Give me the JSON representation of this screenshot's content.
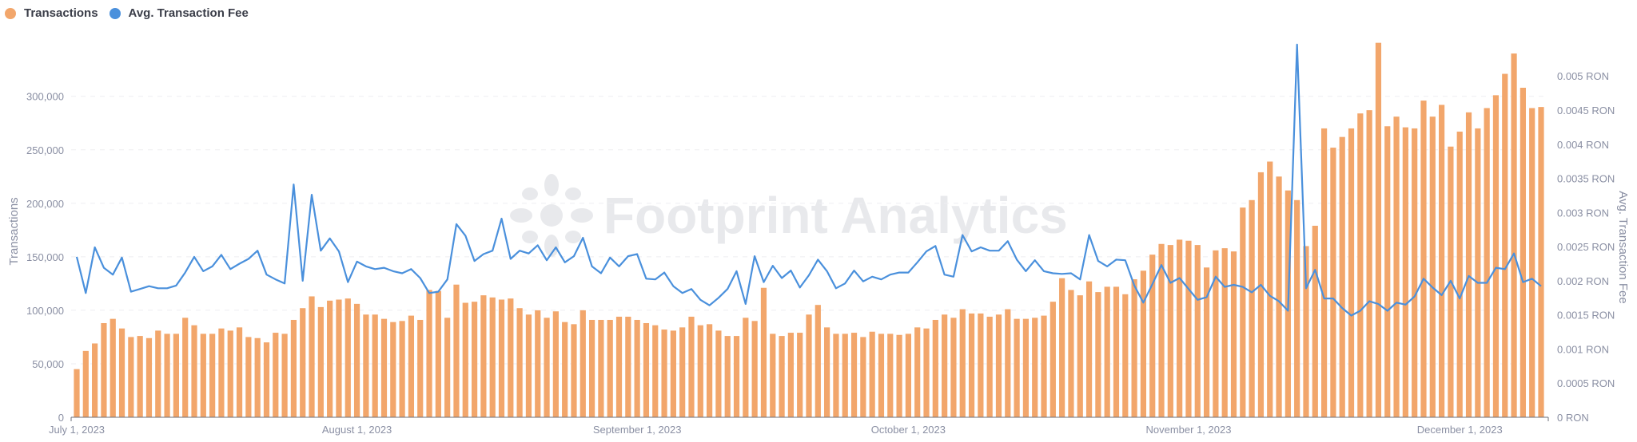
{
  "chart_data": {
    "type": "bar+line",
    "legend_position": "top-left",
    "grid": true,
    "watermark": "Footprint Analytics",
    "colors": {
      "transactions": "#F2A66B",
      "fee": "#4A90DC",
      "tick": "#8A8FA3",
      "grid": "#EEEEF1"
    },
    "xlabel": "",
    "ylabel_left": "Transactions",
    "ylabel_right": "Avg. Transaction Fee",
    "ylim_left": [
      0,
      349000
    ],
    "ylim_right": [
      0,
      0.00547
    ],
    "y_ticks_left": [
      {
        "v": 0,
        "label": "0"
      },
      {
        "v": 50000,
        "label": "50,000"
      },
      {
        "v": 100000,
        "label": "100,000"
      },
      {
        "v": 150000,
        "label": "150,000"
      },
      {
        "v": 200000,
        "label": "200,000"
      },
      {
        "v": 250000,
        "label": "250,000"
      },
      {
        "v": 300000,
        "label": "300,000"
      }
    ],
    "y_ticks_right": [
      {
        "v": 0,
        "label": "0 RON"
      },
      {
        "v": 0.0005,
        "label": "0.0005 RON"
      },
      {
        "v": 0.001,
        "label": "0.001 RON"
      },
      {
        "v": 0.0015,
        "label": "0.0015 RON"
      },
      {
        "v": 0.002,
        "label": "0.002 RON"
      },
      {
        "v": 0.0025,
        "label": "0.0025 RON"
      },
      {
        "v": 0.003,
        "label": "0.003 RON"
      },
      {
        "v": 0.0035,
        "label": "0.0035 RON"
      },
      {
        "v": 0.004,
        "label": "0.004 RON"
      },
      {
        "v": 0.0045,
        "label": "0.0045 RON"
      },
      {
        "v": 0.005,
        "label": "0.005 RON"
      }
    ],
    "x_ticks": [
      {
        "date": "2023-07-01",
        "label": "July 1, 2023"
      },
      {
        "date": "2023-08-01",
        "label": "August 1, 2023"
      },
      {
        "date": "2023-09-01",
        "label": "September 1, 2023"
      },
      {
        "date": "2023-10-01",
        "label": "October 1, 2023"
      },
      {
        "date": "2023-11-01",
        "label": "November 1, 2023"
      },
      {
        "date": "2023-12-01",
        "label": "December 1, 2023"
      }
    ],
    "x": [
      "2023-07-01",
      "2023-07-02",
      "2023-07-03",
      "2023-07-04",
      "2023-07-05",
      "2023-07-06",
      "2023-07-07",
      "2023-07-08",
      "2023-07-09",
      "2023-07-10",
      "2023-07-11",
      "2023-07-12",
      "2023-07-13",
      "2023-07-14",
      "2023-07-15",
      "2023-07-16",
      "2023-07-17",
      "2023-07-18",
      "2023-07-19",
      "2023-07-20",
      "2023-07-21",
      "2023-07-22",
      "2023-07-23",
      "2023-07-24",
      "2023-07-25",
      "2023-07-26",
      "2023-07-27",
      "2023-07-28",
      "2023-07-29",
      "2023-07-30",
      "2023-07-31",
      "2023-08-01",
      "2023-08-02",
      "2023-08-03",
      "2023-08-04",
      "2023-08-05",
      "2023-08-06",
      "2023-08-07",
      "2023-08-08",
      "2023-08-09",
      "2023-08-10",
      "2023-08-11",
      "2023-08-12",
      "2023-08-13",
      "2023-08-14",
      "2023-08-15",
      "2023-08-16",
      "2023-08-17",
      "2023-08-18",
      "2023-08-19",
      "2023-08-20",
      "2023-08-21",
      "2023-08-22",
      "2023-08-23",
      "2023-08-24",
      "2023-08-25",
      "2023-08-26",
      "2023-08-27",
      "2023-08-28",
      "2023-08-29",
      "2023-08-30",
      "2023-08-31",
      "2023-09-01",
      "2023-09-02",
      "2023-09-03",
      "2023-09-04",
      "2023-09-05",
      "2023-09-06",
      "2023-09-07",
      "2023-09-08",
      "2023-09-09",
      "2023-09-10",
      "2023-09-11",
      "2023-09-12",
      "2023-09-13",
      "2023-09-14",
      "2023-09-15",
      "2023-09-16",
      "2023-09-17",
      "2023-09-18",
      "2023-09-19",
      "2023-09-20",
      "2023-09-21",
      "2023-09-22",
      "2023-09-23",
      "2023-09-24",
      "2023-09-25",
      "2023-09-26",
      "2023-09-27",
      "2023-09-28",
      "2023-09-29",
      "2023-09-30",
      "2023-10-01",
      "2023-10-02",
      "2023-10-03",
      "2023-10-04",
      "2023-10-05",
      "2023-10-06",
      "2023-10-07",
      "2023-10-08",
      "2023-10-09",
      "2023-10-10",
      "2023-10-11",
      "2023-10-12",
      "2023-10-13",
      "2023-10-14",
      "2023-10-15",
      "2023-10-16",
      "2023-10-17",
      "2023-10-18",
      "2023-10-19",
      "2023-10-20",
      "2023-10-21",
      "2023-10-22",
      "2023-10-23",
      "2023-10-24",
      "2023-10-25",
      "2023-10-26",
      "2023-10-27",
      "2023-10-28",
      "2023-10-29",
      "2023-10-30",
      "2023-10-31",
      "2023-11-01",
      "2023-11-02",
      "2023-11-03",
      "2023-11-04",
      "2023-11-05",
      "2023-11-06",
      "2023-11-07",
      "2023-11-08",
      "2023-11-09",
      "2023-11-10",
      "2023-11-11",
      "2023-11-12",
      "2023-11-13",
      "2023-11-14",
      "2023-11-15",
      "2023-11-16",
      "2023-11-17",
      "2023-11-18",
      "2023-11-19",
      "2023-11-20",
      "2023-11-21",
      "2023-11-22",
      "2023-11-23",
      "2023-11-24",
      "2023-11-25",
      "2023-11-26",
      "2023-11-27",
      "2023-11-28",
      "2023-11-29",
      "2023-11-30",
      "2023-12-01",
      "2023-12-02",
      "2023-12-03",
      "2023-12-04",
      "2023-12-05",
      "2023-12-06",
      "2023-12-07",
      "2023-12-08",
      "2023-12-09",
      "2023-12-10"
    ],
    "series": [
      {
        "name": "Transactions",
        "type": "bar",
        "axis": "left",
        "values": [
          45000,
          62000,
          69000,
          88000,
          92000,
          83000,
          75000,
          76000,
          74000,
          81000,
          78000,
          78000,
          93000,
          86000,
          78000,
          78000,
          83000,
          81000,
          84000,
          75000,
          74000,
          70000,
          79000,
          78000,
          91000,
          102000,
          113000,
          103000,
          109000,
          110000,
          111000,
          106000,
          96000,
          96000,
          92000,
          89000,
          90000,
          95000,
          91000,
          119000,
          118000,
          93000,
          124000,
          107000,
          108000,
          114000,
          112000,
          110000,
          111000,
          102000,
          96000,
          100000,
          93000,
          99000,
          89000,
          87000,
          100000,
          91000,
          91000,
          91000,
          94000,
          94000,
          91000,
          88000,
          86000,
          82000,
          81000,
          84000,
          94000,
          86000,
          87000,
          81000,
          76000,
          76000,
          93000,
          90000,
          121000,
          78000,
          76000,
          79000,
          79000,
          96000,
          105000,
          84000,
          78000,
          78000,
          79000,
          75000,
          80000,
          78000,
          78000,
          77000,
          78000,
          84000,
          83000,
          91000,
          96000,
          93000,
          101000,
          97000,
          97000,
          94000,
          96000,
          101000,
          92000,
          92000,
          93000,
          95000,
          108000,
          130000,
          119000,
          114000,
          127000,
          117000,
          122000,
          122000,
          115000,
          129000,
          137000,
          152000,
          162000,
          161000,
          166000,
          165000,
          161000,
          140000,
          156000,
          158000,
          155000,
          196000,
          203000,
          229000,
          239000,
          225000,
          212000,
          203000,
          160000,
          179000,
          270000,
          252000,
          262000,
          270000,
          284000,
          287000,
          350000,
          272000,
          281000,
          271000,
          270000,
          296000,
          281000,
          292000,
          253000,
          267000,
          285000,
          270000,
          289000,
          301000,
          321000,
          340000,
          308000,
          289000,
          290000
        ]
      },
      {
        "name": "Avg. Transaction Fee",
        "type": "line",
        "axis": "right",
        "unit": "RON",
        "values": [
          0.00235,
          0.00182,
          0.00249,
          0.00219,
          0.00209,
          0.00234,
          0.00184,
          0.00188,
          0.00192,
          0.00189,
          0.00189,
          0.00193,
          0.00212,
          0.00235,
          0.00214,
          0.00221,
          0.00238,
          0.00217,
          0.00225,
          0.00232,
          0.00244,
          0.00209,
          0.00202,
          0.00196,
          0.00341,
          0.002,
          0.00326,
          0.00244,
          0.00262,
          0.00243,
          0.00198,
          0.00228,
          0.00221,
          0.00217,
          0.00219,
          0.00214,
          0.00211,
          0.00217,
          0.00204,
          0.00182,
          0.00184,
          0.00202,
          0.00283,
          0.00266,
          0.00229,
          0.00239,
          0.00244,
          0.00291,
          0.00232,
          0.00244,
          0.0024,
          0.00252,
          0.0023,
          0.00249,
          0.00227,
          0.00236,
          0.00263,
          0.00221,
          0.00211,
          0.00234,
          0.00221,
          0.00236,
          0.00239,
          0.00203,
          0.00202,
          0.00212,
          0.00192,
          0.00182,
          0.00188,
          0.00172,
          0.00164,
          0.00175,
          0.00188,
          0.00214,
          0.00166,
          0.00236,
          0.00198,
          0.00222,
          0.00204,
          0.00215,
          0.0019,
          0.00208,
          0.00231,
          0.00214,
          0.00189,
          0.00196,
          0.00215,
          0.00199,
          0.00206,
          0.00202,
          0.00209,
          0.00212,
          0.00212,
          0.00227,
          0.00243,
          0.00251,
          0.00209,
          0.00206,
          0.00267,
          0.00243,
          0.00249,
          0.00244,
          0.00244,
          0.00258,
          0.00231,
          0.00214,
          0.0023,
          0.00214,
          0.00211,
          0.0021,
          0.00211,
          0.00202,
          0.00267,
          0.00229,
          0.00221,
          0.00231,
          0.0023,
          0.00193,
          0.00168,
          0.00195,
          0.00223,
          0.00197,
          0.00204,
          0.00188,
          0.00172,
          0.00176,
          0.00206,
          0.00191,
          0.00194,
          0.00191,
          0.00183,
          0.00194,
          0.00178,
          0.0017,
          0.00156,
          0.00546,
          0.00189,
          0.00216,
          0.00174,
          0.00174,
          0.0016,
          0.00149,
          0.00156,
          0.0017,
          0.00166,
          0.00156,
          0.00168,
          0.00165,
          0.00177,
          0.00203,
          0.0019,
          0.00179,
          0.002,
          0.00174,
          0.00207,
          0.00197,
          0.00197,
          0.00219,
          0.00217,
          0.0024,
          0.00198,
          0.00203,
          0.00192
        ]
      }
    ]
  }
}
